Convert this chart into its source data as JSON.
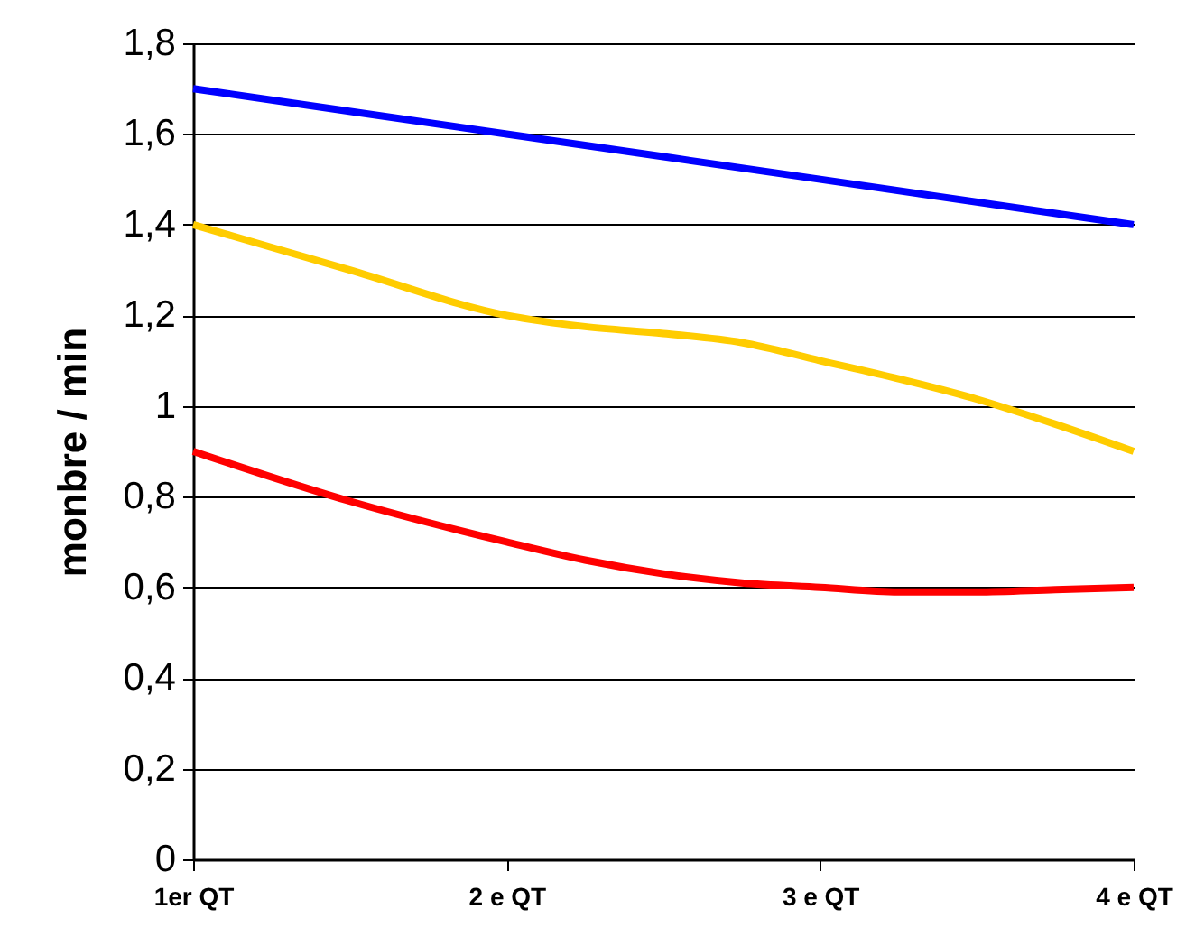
{
  "chart_data": {
    "type": "line",
    "ylabel": "monbre / min",
    "x": [
      1,
      1.5,
      2,
      2.25,
      2.5,
      2.75,
      3,
      3.25,
      3.5,
      3.75,
      4
    ],
    "series": [
      {
        "color": "#0000ff",
        "x": [
          1,
          2,
          3,
          4
        ],
        "values": [
          1.7,
          1.6,
          1.5,
          1.4
        ]
      },
      {
        "color": "#ffcc00",
        "values": [
          1.4,
          1.3,
          1.2,
          1.175,
          1.16,
          1.14,
          1.1,
          1.06,
          1.015,
          0.96,
          0.9
        ]
      },
      {
        "color": "#ff0000",
        "values": [
          0.9,
          0.79,
          0.7,
          0.66,
          0.63,
          0.61,
          0.6,
          0.59,
          0.59,
          0.595,
          0.6
        ]
      }
    ],
    "xlim": [
      1,
      4
    ],
    "xticks": [
      {
        "value": 1,
        "label": "1er QT"
      },
      {
        "value": 2,
        "label": "2 e QT"
      },
      {
        "value": 3,
        "label": "3 e QT"
      },
      {
        "value": 4,
        "label": "4 e QT"
      }
    ],
    "ylim": [
      0,
      1.8
    ],
    "yticks": [
      0,
      {
        "value": 0.2,
        "label": "0,2"
      },
      {
        "value": 0.4,
        "label": "0,4"
      },
      {
        "value": 0.6,
        "label": "0,6"
      },
      {
        "value": 0.8,
        "label": "0,8"
      },
      1,
      {
        "value": 1.2,
        "label": "1,2"
      },
      {
        "value": 1.4,
        "label": "1,4"
      },
      {
        "value": 1.6,
        "label": "1,6"
      },
      {
        "value": 1.8,
        "label": "1,8"
      }
    ],
    "grid": "y",
    "legend": false,
    "marker": "none",
    "line_style": "solid"
  }
}
